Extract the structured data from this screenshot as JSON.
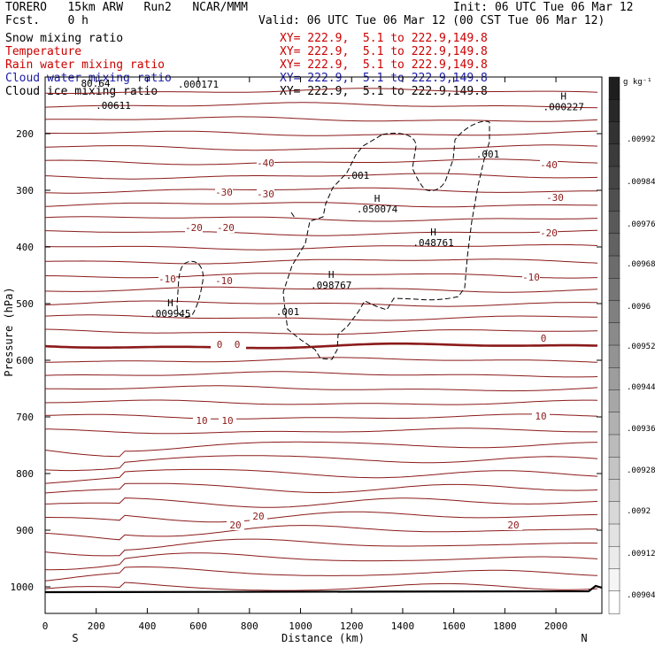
{
  "header": {
    "model": "TORERO   15km ARW   Run2   NCAR/MMM",
    "init": "Init: 06 UTC Tue 06 Mar 12",
    "fcst": "Fcst.    0 h",
    "valid": "Valid: 06 UTC Tue 06 Mar 12 (00 CST Tue 06 Mar 12)",
    "fields": [
      {
        "name": "Snow mixing ratio",
        "xy": "XY= 222.9,  5.1 to 222.9,149.8",
        "color": "#000000"
      },
      {
        "name": "Temperature",
        "xy": "XY= 222.9,  5.1 to 222.9,149.8",
        "color": "#cc0000"
      },
      {
        "name": "Rain water mixing ratio",
        "xy": "XY= 222.9,  5.1 to 222.9,149.8",
        "color": "#cc0000"
      },
      {
        "name": "Cloud water mixing ratio",
        "xy": "XY= 222.9,  5.1 to 222.9,149.8",
        "color": "#1a1aa8"
      },
      {
        "name": "Cloud ice mixing ratio",
        "xy": "XY= 222.9,  5.1 to 222.9,149.8",
        "color": "#000000"
      }
    ]
  },
  "chart_data": {
    "type": "cross-section",
    "xlabel": "Distance (km)",
    "ylabel": "Pressure (hPa)",
    "xlim": [
      0,
      2180
    ],
    "ylim": [
      1050,
      100
    ],
    "x_ticks": [
      0,
      200,
      400,
      600,
      800,
      1000,
      1200,
      1400,
      1600,
      1800,
      2000
    ],
    "y_ticks": [
      200,
      300,
      400,
      500,
      600,
      700,
      800,
      900,
      1000
    ],
    "end_labels": {
      "left": "S",
      "right": "N"
    },
    "isotherms": [
      {
        "temp": -40,
        "labels": [
          "-40",
          "-40"
        ]
      },
      {
        "temp": -30,
        "labels": [
          "-30",
          "-30",
          "-30"
        ]
      },
      {
        "temp": -20,
        "labels": [
          "-20",
          "-20",
          "-20"
        ]
      },
      {
        "temp": -10,
        "labels": [
          "-10",
          "-10",
          "-10"
        ]
      },
      {
        "temp": 0,
        "labels": [
          "0",
          "0",
          "0"
        ]
      },
      {
        "temp": 10,
        "labels": [
          "10",
          "10",
          "10"
        ]
      },
      {
        "temp": 20,
        "labels": [
          "20",
          "20",
          "20"
        ]
      }
    ],
    "snow_contour_labels": [
      ".001",
      ".001",
      ".001"
    ],
    "extrema": [
      {
        "label": "H",
        "value": ".050074",
        "x": 1300,
        "p": 320
      },
      {
        "label": "H",
        "value": ".048761",
        "x": 1520,
        "p": 380
      },
      {
        "label": "H",
        "value": ".098767",
        "x": 1120,
        "p": 455
      },
      {
        "label": "H",
        "value": ".009945",
        "x": 490,
        "p": 505
      },
      {
        "label": "H",
        "value": ".000227",
        "x": 2030,
        "p": 140
      }
    ],
    "top_labels": [
      ".00611",
      ".000171",
      "80.64"
    ],
    "colorbar": {
      "units": "g kg⁻¹",
      "labels": [
        ".00992",
        ".00984",
        ".00976",
        ".00968",
        ".0096",
        ".00952",
        ".00944",
        ".00936",
        ".00928",
        ".0092",
        ".00912",
        ".00904"
      ]
    }
  }
}
